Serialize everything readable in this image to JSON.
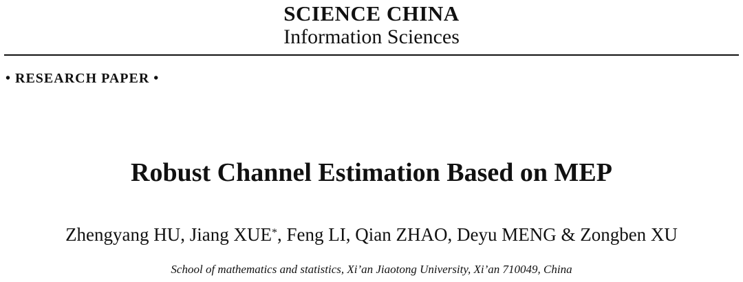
{
  "header": {
    "journal_name": "SCIENCE CHINA",
    "journal_subtitle": "Information Sciences",
    "paper_type": "• RESEARCH PAPER •"
  },
  "paper": {
    "title": "Robust Channel Estimation Based on MEP",
    "authors_before_mark": "Zhengyang HU, Jiang XUE",
    "corresponding_mark": "*",
    "authors_after_mark": ", Feng LI, Qian ZHAO, Deyu MENG & Zongben XU",
    "affiliation": "School of mathematics and statistics, Xi’an Jiaotong University, Xi’an 710049, China"
  }
}
